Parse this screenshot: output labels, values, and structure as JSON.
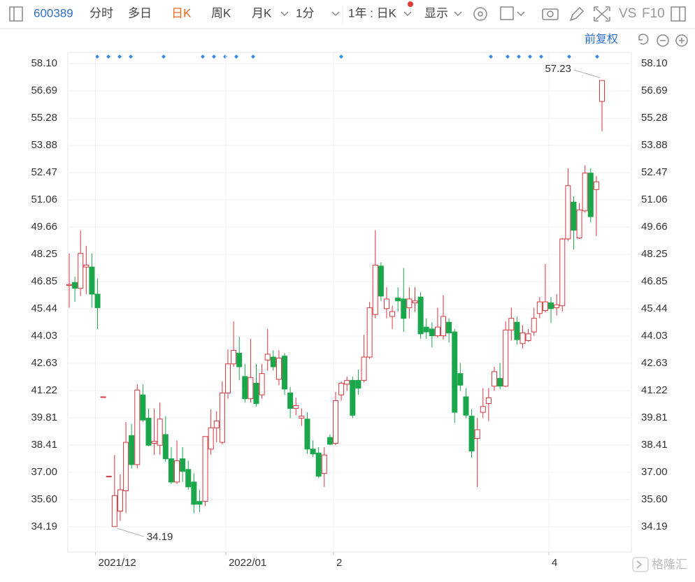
{
  "toolbar": {
    "code": "600389",
    "tabs": [
      "分时",
      "多日",
      "日K",
      "周K",
      "月K",
      "1分"
    ],
    "period": "1年 : 日K",
    "display": "显示",
    "vs": "VS",
    "f10": "F10",
    "adjust": "前复权"
  },
  "watermark": "格隆汇",
  "chart_data": {
    "type": "candlestick",
    "up_color": "#d9363e",
    "down_color": "#1aa64a",
    "grid": true,
    "categories": [
      null,
      null,
      null,
      null,
      null,
      "2021/12",
      null,
      null,
      null,
      null,
      null,
      null,
      null,
      null,
      null,
      null,
      null,
      null,
      null,
      null,
      null,
      null,
      null,
      null,
      null,
      null,
      null,
      null,
      "2022/01",
      null,
      null,
      null,
      null,
      null,
      null,
      null,
      null,
      null,
      null,
      null,
      null,
      null,
      null,
      null,
      null,
      null,
      null,
      "2",
      null,
      null,
      null,
      null,
      null,
      null,
      null,
      null,
      null,
      null,
      null,
      null,
      null,
      null,
      null,
      null,
      null,
      null,
      null,
      null,
      null,
      null,
      null,
      null,
      null,
      null,
      null,
      null,
      null,
      null,
      null,
      null,
      null,
      null,
      null,
      null,
      null,
      "4",
      null,
      null,
      null,
      null,
      null,
      null,
      null,
      null,
      null
    ],
    "open": [
      46.65,
      46.8,
      46.5,
      47.6,
      47.6,
      46.2,
      40.9,
      36.8,
      34.2,
      35.0,
      36.05,
      38.9,
      37.4,
      41.0,
      39.8,
      38.5,
      38.4,
      38.95,
      37.7,
      36.5,
      37.7,
      37.15,
      36.5,
      35.5,
      35.5,
      38.2,
      39.3,
      38.55,
      41.1,
      42.6,
      43.15,
      41.95,
      40.8,
      41.6,
      41.0,
      42.8,
      42.95,
      41.8,
      43.0,
      41.1,
      40.3,
      39.8,
      39.75,
      38.2,
      38.0,
      36.95,
      38.8,
      38.5,
      41.0,
      41.55,
      41.75,
      41.75,
      41.75,
      42.95,
      45.15,
      47.65,
      45.45,
      45.05,
      46.0,
      45.95,
      45.5,
      45.75,
      46.05,
      44.5,
      44.4,
      44.05,
      44.05,
      44.75,
      44.25,
      42.1,
      40.9,
      39.9,
      38.75,
      40.1,
      40.55,
      41.45,
      41.85,
      41.45,
      44.35,
      44.75,
      43.65,
      43.8,
      44.25,
      45.2,
      45.35,
      45.75,
      45.5,
      45.6,
      49.05,
      50.95,
      49.1,
      50.5,
      52.45,
      51.6,
      56.15
    ],
    "close": [
      46.7,
      46.5,
      48.3,
      47.7,
      46.2,
      45.5,
      40.9,
      36.8,
      35.8,
      36.1,
      38.55,
      37.4,
      41.25,
      39.7,
      38.4,
      38.6,
      39.75,
      37.7,
      36.5,
      37.6,
      37.05,
      36.25,
      35.35,
      35.35,
      38.85,
      39.3,
      39.65,
      41.1,
      42.6,
      43.3,
      42.45,
      40.8,
      41.9,
      40.55,
      42.1,
      43.1,
      42.45,
      42.9,
      41.3,
      40.3,
      40.45,
      39.9,
      38.2,
      37.95,
      36.8,
      37.9,
      38.45,
      40.7,
      41.6,
      41.75,
      39.95,
      41.35,
      42.95,
      45.5,
      47.7,
      46.1,
      45.95,
      45.3,
      45.85,
      44.95,
      45.95,
      45.85,
      44.15,
      44.25,
      44.05,
      44.5,
      45.05,
      44.2,
      40.1,
      41.5,
      39.95,
      38.1,
      39.2,
      40.4,
      40.85,
      42.2,
      41.45,
      44.35,
      44.95,
      43.85,
      44.2,
      44.15,
      44.95,
      45.8,
      45.8,
      45.45,
      45.65,
      49.05,
      51.8,
      49.5,
      50.55,
      52.45,
      50.2,
      52.0,
      57.23
    ],
    "high": [
      48.3,
      47.1,
      49.5,
      48.7,
      48.3,
      47.0,
      40.9,
      36.8,
      37.9,
      36.9,
      39.6,
      39.5,
      41.55,
      41.55,
      40.3,
      40.3,
      40.6,
      39.9,
      38.3,
      38.65,
      38.3,
      37.6,
      36.95,
      36.1,
      38.85,
      40.25,
      40.15,
      41.7,
      43.35,
      44.8,
      44.0,
      42.6,
      43.9,
      42.6,
      42.6,
      44.4,
      43.3,
      43.3,
      43.15,
      41.4,
      40.85,
      40.3,
      40.1,
      38.65,
      38.3,
      38.3,
      38.95,
      41.15,
      41.7,
      41.95,
      41.95,
      42.3,
      44.1,
      45.8,
      49.5,
      47.85,
      46.55,
      45.6,
      46.55,
      47.55,
      46.55,
      46.55,
      46.3,
      44.95,
      44.75,
      45.5,
      46.15,
      44.95,
      44.4,
      42.65,
      41.35,
      40.25,
      39.8,
      41.35,
      41.35,
      42.45,
      42.65,
      44.8,
      45.5,
      45.05,
      44.6,
      44.4,
      45.5,
      46.05,
      47.75,
      46.05,
      46.2,
      49.1,
      52.7,
      51.25,
      50.9,
      52.85,
      52.7,
      52.3,
      57.23
    ],
    "low": [
      45.5,
      45.8,
      46.1,
      46.2,
      45.5,
      44.4,
      40.9,
      36.8,
      34.19,
      34.5,
      34.9,
      37.2,
      37.2,
      39.6,
      38.35,
      37.9,
      37.9,
      37.55,
      36.4,
      36.4,
      36.5,
      36.1,
      34.9,
      34.95,
      35.25,
      37.9,
      38.55,
      38.45,
      40.8,
      42.45,
      41.75,
      40.6,
      40.6,
      40.4,
      40.8,
      42.25,
      42.25,
      41.5,
      41.0,
      39.8,
      39.95,
      39.4,
      37.95,
      37.8,
      36.7,
      36.25,
      38.4,
      38.4,
      40.7,
      41.2,
      39.8,
      41.0,
      41.65,
      42.85,
      44.95,
      45.85,
      44.95,
      44.4,
      45.3,
      44.25,
      44.95,
      45.3,
      43.9,
      43.9,
      43.45,
      43.95,
      43.85,
      43.7,
      39.55,
      41.2,
      39.8,
      37.75,
      36.25,
      39.8,
      39.65,
      41.2,
      41.3,
      41.4,
      43.8,
      43.6,
      43.4,
      43.75,
      44.05,
      44.95,
      45.25,
      44.7,
      45.1,
      45.3,
      48.95,
      48.5,
      49.05,
      50.4,
      49.9,
      49.2,
      54.6
    ],
    "ylim": [
      32.89,
      58.68
    ],
    "yticks": [
      {
        "value": 58.1,
        "label": "58.10"
      },
      56.69,
      55.28,
      53.88,
      52.47,
      51.06,
      49.66,
      48.25,
      46.85,
      45.44,
      44.03,
      42.63,
      41.22,
      39.81,
      38.41,
      {
        "value": 37,
        "label": "37.00"
      },
      {
        "value": 35.6,
        "label": "35.60"
      },
      34.19
    ]
  }
}
